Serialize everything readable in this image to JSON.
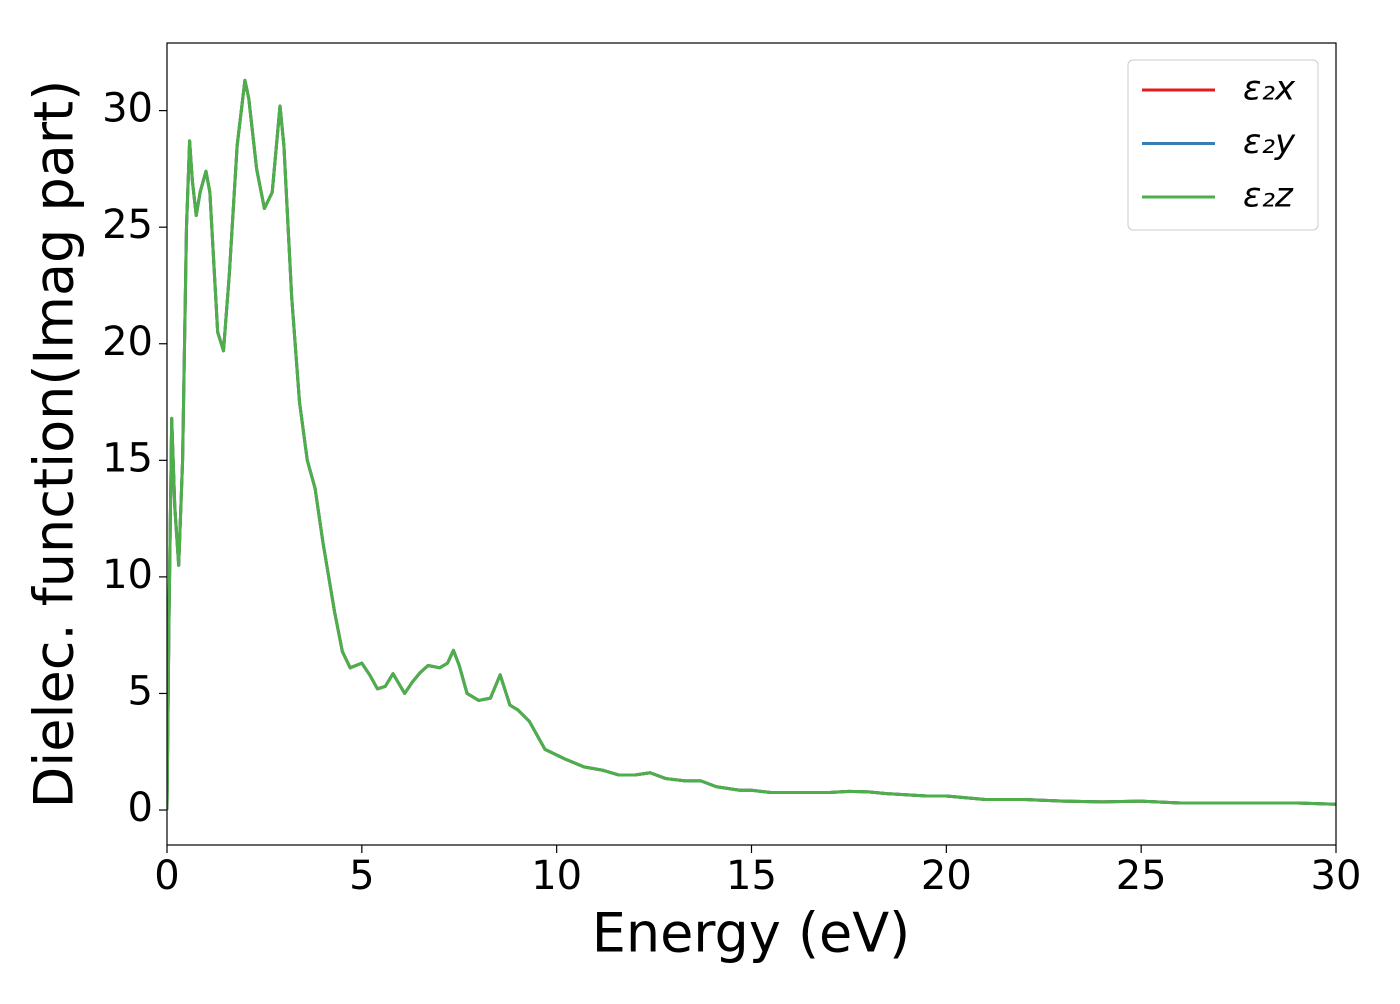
{
  "chart_data": {
    "type": "line",
    "xlabel": "Energy (eV)",
    "ylabel": "Dielec. function(Imag part)",
    "x": [
      0,
      0.05,
      0.12,
      0.2,
      0.3,
      0.4,
      0.5,
      0.58,
      0.65,
      0.75,
      0.85,
      1.0,
      1.1,
      1.2,
      1.3,
      1.45,
      1.6,
      1.8,
      2.0,
      2.1,
      2.3,
      2.5,
      2.7,
      2.9,
      3.0,
      3.2,
      3.4,
      3.6,
      3.8,
      4.0,
      4.3,
      4.5,
      4.7,
      5.0,
      5.2,
      5.4,
      5.6,
      5.8,
      6.1,
      6.3,
      6.5,
      6.7,
      7.0,
      7.2,
      7.35,
      7.5,
      7.7,
      8.0,
      8.3,
      8.55,
      8.8,
      9.0,
      9.3,
      9.7,
      10.2,
      10.7,
      11.2,
      11.6,
      12.0,
      12.4,
      12.8,
      13.3,
      13.7,
      14.1,
      14.7,
      15.0,
      15.5,
      16.0,
      17.0,
      17.5,
      18.0,
      18.5,
      19.5,
      20.0,
      21.0,
      22.0,
      23.0,
      24.0,
      25.0,
      26.0,
      27.0,
      28.0,
      29.0,
      30.0
    ],
    "series": [
      {
        "name": "ε₂x",
        "color": "#e41a1c",
        "values": [
          0,
          8,
          16.8,
          13,
          10.5,
          15,
          25,
          28.7,
          27,
          25.5,
          26.5,
          27.4,
          26.5,
          23.5,
          20.5,
          19.7,
          23,
          28.5,
          31.3,
          30.5,
          27.5,
          25.8,
          26.5,
          30.2,
          28.5,
          22,
          17.5,
          15,
          13.8,
          11.5,
          8.5,
          6.8,
          6.1,
          6.3,
          5.8,
          5.2,
          5.3,
          5.85,
          5.0,
          5.5,
          5.9,
          6.2,
          6.1,
          6.3,
          6.85,
          6.2,
          5.0,
          4.7,
          4.8,
          5.8,
          4.5,
          4.3,
          3.8,
          2.6,
          2.2,
          1.85,
          1.7,
          1.5,
          1.5,
          1.6,
          1.35,
          1.25,
          1.25,
          1.0,
          0.85,
          0.85,
          0.75,
          0.75,
          0.75,
          0.8,
          0.78,
          0.7,
          0.6,
          0.6,
          0.45,
          0.45,
          0.38,
          0.35,
          0.38,
          0.3,
          0.3,
          0.3,
          0.3,
          0.25
        ]
      },
      {
        "name": "ε₂y",
        "color": "#377eb8",
        "values": [
          0,
          8,
          16.8,
          13,
          10.5,
          15,
          25,
          28.7,
          27,
          25.5,
          26.5,
          27.4,
          26.5,
          23.5,
          20.5,
          19.7,
          23,
          28.5,
          31.3,
          30.5,
          27.5,
          25.8,
          26.5,
          30.2,
          28.5,
          22,
          17.5,
          15,
          13.8,
          11.5,
          8.5,
          6.8,
          6.1,
          6.3,
          5.8,
          5.2,
          5.3,
          5.85,
          5.0,
          5.5,
          5.9,
          6.2,
          6.1,
          6.3,
          6.85,
          6.2,
          5.0,
          4.7,
          4.8,
          5.8,
          4.5,
          4.3,
          3.8,
          2.6,
          2.2,
          1.85,
          1.7,
          1.5,
          1.5,
          1.6,
          1.35,
          1.25,
          1.25,
          1.0,
          0.85,
          0.85,
          0.75,
          0.75,
          0.75,
          0.8,
          0.78,
          0.7,
          0.6,
          0.6,
          0.45,
          0.45,
          0.38,
          0.35,
          0.38,
          0.3,
          0.3,
          0.3,
          0.3,
          0.25
        ]
      },
      {
        "name": "ε₂z",
        "color": "#4daf4a",
        "values": [
          0,
          8,
          16.8,
          13,
          10.5,
          15,
          25,
          28.7,
          27,
          25.5,
          26.5,
          27.4,
          26.5,
          23.5,
          20.5,
          19.7,
          23,
          28.5,
          31.3,
          30.5,
          27.5,
          25.8,
          26.5,
          30.2,
          28.5,
          22,
          17.5,
          15,
          13.8,
          11.5,
          8.5,
          6.8,
          6.1,
          6.3,
          5.8,
          5.2,
          5.3,
          5.85,
          5.0,
          5.5,
          5.9,
          6.2,
          6.1,
          6.3,
          6.85,
          6.2,
          5.0,
          4.7,
          4.8,
          5.8,
          4.5,
          4.3,
          3.8,
          2.6,
          2.2,
          1.85,
          1.7,
          1.5,
          1.5,
          1.6,
          1.35,
          1.25,
          1.25,
          1.0,
          0.85,
          0.85,
          0.75,
          0.75,
          0.75,
          0.8,
          0.78,
          0.7,
          0.6,
          0.6,
          0.45,
          0.45,
          0.38,
          0.35,
          0.38,
          0.3,
          0.3,
          0.3,
          0.3,
          0.25
        ]
      }
    ],
    "xlim": [
      0,
      30
    ],
    "xticks": [
      0,
      5,
      10,
      15,
      20,
      25,
      30
    ],
    "ylim": [
      -1.5,
      32.9
    ],
    "yticks": [
      0,
      5,
      10,
      15,
      20,
      25,
      30
    ],
    "legend": "upper right"
  }
}
